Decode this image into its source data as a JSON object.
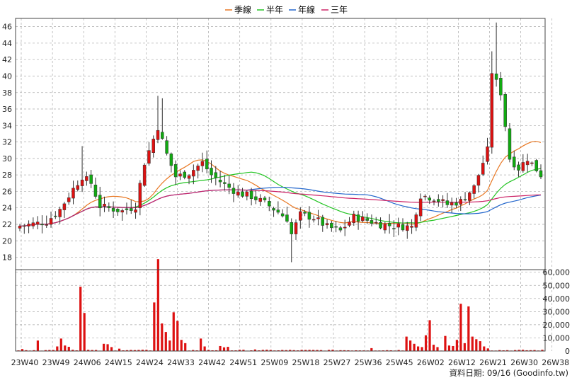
{
  "chart_data": {
    "type": "candlestick",
    "legend": {
      "placement": "top-center",
      "items": [
        {
          "name": "季線",
          "color": "#e87722"
        },
        {
          "name": "半年",
          "color": "#22c422"
        },
        {
          "name": "年線",
          "color": "#2266cc"
        },
        {
          "name": "三年",
          "color": "#cc2266"
        }
      ]
    },
    "price_axis": {
      "ylim": [
        16.5,
        47
      ],
      "ticks": [
        "18",
        "20",
        "22",
        "24",
        "26",
        "28",
        "30",
        "32",
        "34",
        "36",
        "38",
        "40",
        "42",
        "44",
        "46"
      ]
    },
    "volume_axis": {
      "ylim": [
        0,
        62000
      ],
      "ticks": [
        "0",
        "10,000",
        "20,000",
        "30,000",
        "40,000",
        "50,000",
        "60,000"
      ]
    },
    "x_ticks": [
      "23W40",
      "23W49",
      "24W06",
      "24W15",
      "24W24",
      "24W33",
      "24W42",
      "24W51",
      "25W09",
      "25W18",
      "25W27",
      "25W36",
      "25W45",
      "26W02",
      "26W12",
      "26W21",
      "26W30",
      "26W38"
    ],
    "colors": {
      "up": "#dd1111",
      "down": "#11aa11",
      "grid": "#aaaaaa",
      "volume": "#dd1111"
    },
    "footer": "資料日期: 09/16  (Goodinfo.tw)"
  }
}
